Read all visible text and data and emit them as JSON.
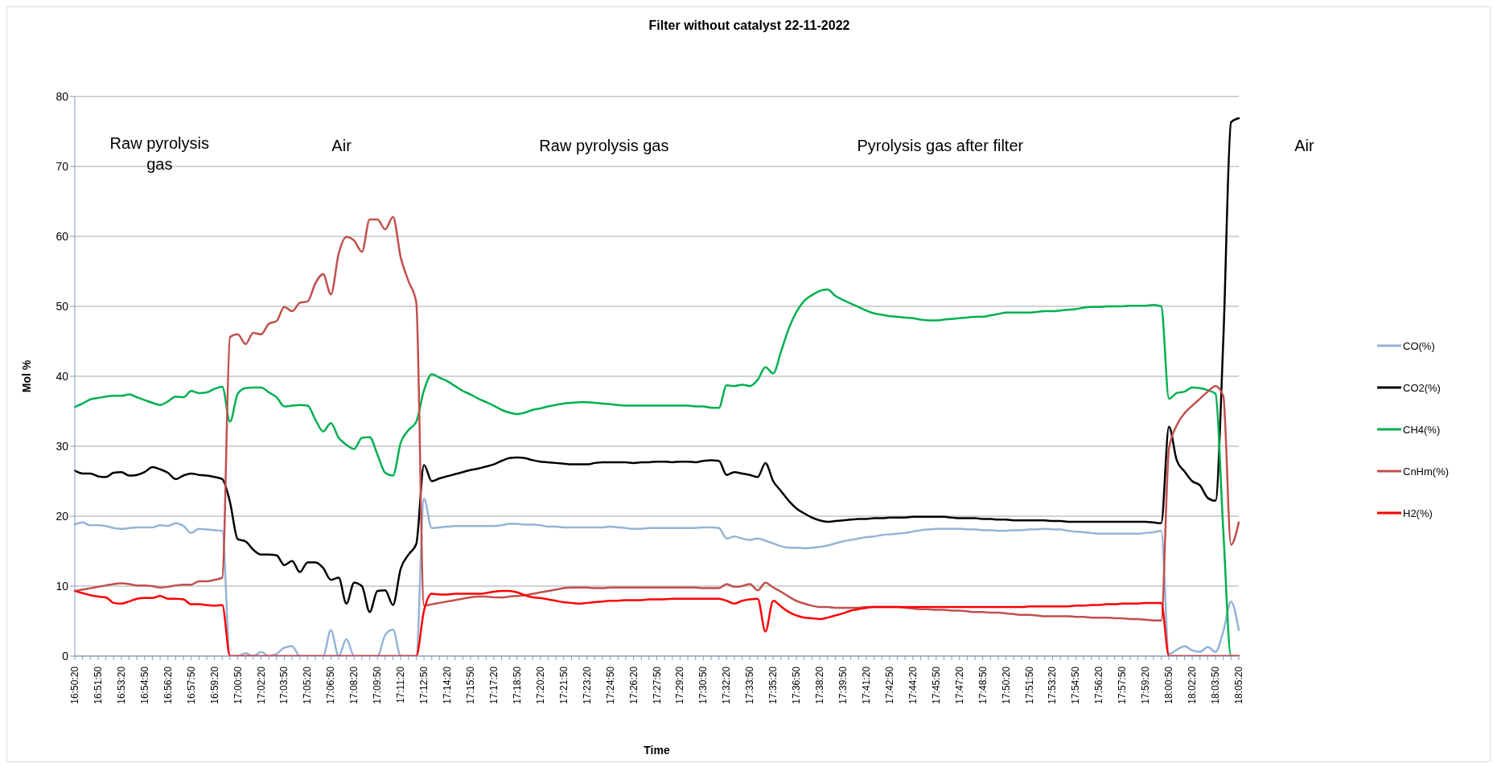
{
  "chart_data": {
    "type": "line",
    "title": "Filter without catalyst 22-11-2022",
    "xlabel": "Time",
    "ylabel": "Mol %",
    "legend": "right",
    "grid": "y",
    "ylim": [
      0,
      80
    ],
    "yticks": [
      0,
      10,
      20,
      30,
      40,
      50,
      60,
      70,
      80
    ],
    "annotations": [
      "Raw pyrolysis gas",
      "Air",
      "Raw pyrolysis gas",
      "Pyrolysis gas after filter",
      "Air"
    ],
    "categories": [
      "16:50:20",
      null,
      null,
      "16:51:50",
      null,
      null,
      "16:53:20",
      null,
      null,
      "16:54:50",
      null,
      null,
      "16:56:20",
      null,
      null,
      "16:57:50",
      null,
      null,
      "16:59:20",
      null,
      null,
      "17:00:50",
      null,
      null,
      "17:02:20",
      null,
      null,
      "17:03:50",
      null,
      null,
      "17:05:20",
      null,
      null,
      "17:06:50",
      null,
      null,
      "17:08:20",
      null,
      null,
      "17:09:50",
      null,
      null,
      "17:11:20",
      null,
      null,
      "17:12:50",
      null,
      null,
      "17:14:20",
      null,
      null,
      "17:15:50",
      null,
      null,
      "17:17:20",
      null,
      null,
      "17:18:50",
      null,
      null,
      "17:20:20",
      null,
      null,
      "17:21:50",
      null,
      null,
      "17:23:20",
      null,
      null,
      "17:24:50",
      null,
      null,
      "17:26:20",
      null,
      null,
      "17:27:50",
      null,
      null,
      "17:29:20",
      null,
      null,
      "17:30:50",
      null,
      null,
      "17:32:20",
      null,
      null,
      "17:33:50",
      null,
      null,
      "17:35:20",
      null,
      null,
      "17:36:50",
      null,
      null,
      "17:38:20",
      null,
      null,
      "17:39:50",
      null,
      null,
      "17:41:20",
      null,
      null,
      "17:42:50",
      null,
      null,
      "17:44:20",
      null,
      null,
      "17:45:50",
      null,
      null,
      "17:47:20",
      null,
      null,
      "17:48:50",
      null,
      null,
      "17:50:20",
      null,
      null,
      "17:51:50",
      null,
      null,
      "17:53:20",
      null,
      null,
      "17:54:50",
      null,
      null,
      "17:56:20",
      null,
      null,
      "17:57:50",
      null,
      null,
      "17:59:20",
      null,
      null,
      "18:00:50",
      null,
      null,
      "18:02:20",
      null,
      null,
      "18:03:50",
      null,
      null,
      "18:05:20"
    ],
    "series": [
      {
        "name": "CO(%)",
        "color": "#95b3d7",
        "values": [
          18.8,
          19.1,
          18.7,
          18.7,
          18.6,
          18.3,
          18.2,
          18.3,
          18.4,
          18.4,
          18.4,
          18.7,
          18.6,
          19.0,
          18.6,
          17.6,
          18.2,
          18.1,
          18.0,
          17.9,
          0,
          0,
          0.4,
          0,
          0.6,
          0,
          0.3,
          1.2,
          1.4,
          0,
          0,
          0,
          0,
          3.7,
          0,
          2.4,
          0,
          0,
          0,
          0,
          3.0,
          3.8,
          0,
          0,
          0,
          22.5,
          18.3,
          18.4,
          18.5,
          18.6,
          18.6,
          18.6,
          18.6,
          18.6,
          18.6,
          18.7,
          18.9,
          18.9,
          18.8,
          18.8,
          18.7,
          18.5,
          18.5,
          18.4,
          18.4,
          18.4,
          18.4,
          18.4,
          18.4,
          18.5,
          18.4,
          18.3,
          18.2,
          18.2,
          18.3,
          18.3,
          18.3,
          18.3,
          18.3,
          18.3,
          18.3,
          18.4,
          18.4,
          18.3,
          16.8,
          17.1,
          16.8,
          16.6,
          16.8,
          16.5,
          16.1,
          15.7,
          15.5,
          15.5,
          15.4,
          15.5,
          15.6,
          15.8,
          16.1,
          16.4,
          16.6,
          16.8,
          17.0,
          17.1,
          17.3,
          17.4,
          17.5,
          17.6,
          17.8,
          18.0,
          18.1,
          18.2,
          18.2,
          18.2,
          18.2,
          18.1,
          18.1,
          18.0,
          18.0,
          17.9,
          17.9,
          18.0,
          18.0,
          18.1,
          18.1,
          18.2,
          18.1,
          18.1,
          17.9,
          17.8,
          17.7,
          17.6,
          17.5,
          17.5,
          17.5,
          17.5,
          17.5,
          17.5,
          17.6,
          17.7,
          17.9,
          0.3,
          0.9,
          1.4,
          0.8,
          0.6,
          1.3,
          0.6,
          3.5,
          7.8,
          3.7
        ]
      },
      {
        "name": "CO2(%)",
        "color": "#000000",
        "values": [
          26.5,
          26.1,
          26.1,
          25.7,
          25.6,
          26.2,
          26.3,
          25.8,
          25.9,
          26.3,
          27.0,
          26.7,
          26.2,
          25.3,
          25.8,
          26.1,
          25.9,
          25.8,
          25.6,
          25.3,
          22.0,
          16.7,
          16.4,
          15.2,
          14.5,
          14.5,
          14.4,
          13.0,
          13.6,
          12.0,
          13.4,
          13.4,
          12.6,
          10.9,
          11.2,
          7.5,
          10.5,
          10.0,
          6.3,
          9.3,
          9.4,
          7.3,
          12.5,
          14.5,
          16.0,
          27.3,
          25.0,
          25.4,
          25.7,
          26.0,
          26.3,
          26.6,
          26.8,
          27.1,
          27.4,
          27.9,
          28.3,
          28.4,
          28.3,
          28.0,
          27.8,
          27.7,
          27.6,
          27.5,
          27.4,
          27.4,
          27.4,
          27.6,
          27.7,
          27.7,
          27.7,
          27.7,
          27.6,
          27.7,
          27.7,
          27.8,
          27.8,
          27.7,
          27.8,
          27.8,
          27.7,
          27.9,
          28.0,
          27.9,
          25.9,
          26.3,
          26.1,
          25.9,
          25.6,
          27.6,
          25.0,
          23.6,
          22.2,
          21.1,
          20.4,
          19.8,
          19.4,
          19.2,
          19.3,
          19.4,
          19.5,
          19.6,
          19.6,
          19.7,
          19.7,
          19.8,
          19.8,
          19.8,
          19.9,
          19.9,
          19.9,
          19.9,
          19.9,
          19.8,
          19.7,
          19.7,
          19.7,
          19.6,
          19.6,
          19.5,
          19.5,
          19.4,
          19.4,
          19.4,
          19.4,
          19.4,
          19.3,
          19.3,
          19.2,
          19.2,
          19.2,
          19.2,
          19.2,
          19.2,
          19.2,
          19.2,
          19.2,
          19.2,
          19.2,
          19.1,
          19.0,
          32.8,
          28.0,
          26.4,
          25.0,
          24.4,
          22.6,
          22.2,
          45.0,
          76.3,
          76.9
        ]
      },
      {
        "name": "CH4(%)",
        "color": "#00b050",
        "values": [
          35.6,
          36.1,
          36.7,
          36.9,
          37.1,
          37.2,
          37.2,
          37.4,
          37.0,
          36.6,
          36.2,
          35.9,
          36.4,
          37.1,
          37.0,
          37.9,
          37.6,
          37.7,
          38.2,
          38.5,
          33.5,
          37.5,
          38.3,
          38.4,
          38.4,
          37.7,
          37.0,
          35.7,
          35.8,
          35.9,
          35.8,
          33.8,
          32.1,
          33.3,
          31.2,
          30.2,
          29.6,
          31.2,
          31.3,
          28.8,
          26.2,
          25.8,
          30.5,
          32.3,
          33.5,
          38.0,
          40.3,
          39.8,
          39.3,
          38.6,
          37.9,
          37.4,
          36.8,
          36.3,
          35.8,
          35.2,
          34.8,
          34.6,
          34.8,
          35.2,
          35.4,
          35.7,
          35.9,
          36.1,
          36.2,
          36.3,
          36.3,
          36.2,
          36.1,
          36.0,
          35.9,
          35.8,
          35.8,
          35.8,
          35.8,
          35.8,
          35.8,
          35.8,
          35.8,
          35.8,
          35.7,
          35.7,
          35.5,
          35.5,
          38.7,
          38.6,
          38.8,
          38.6,
          39.5,
          41.3,
          40.4,
          43.5,
          46.8,
          49.2,
          50.8,
          51.6,
          52.2,
          52.4,
          51.5,
          50.9,
          50.4,
          49.9,
          49.4,
          49.0,
          48.8,
          48.6,
          48.5,
          48.4,
          48.3,
          48.1,
          48.0,
          48.0,
          48.1,
          48.2,
          48.3,
          48.4,
          48.5,
          48.5,
          48.7,
          48.9,
          49.1,
          49.1,
          49.1,
          49.1,
          49.2,
          49.3,
          49.3,
          49.4,
          49.5,
          49.6,
          49.8,
          49.9,
          49.9,
          50.0,
          50.0,
          50.0,
          50.1,
          50.1,
          50.1,
          50.2,
          50.0,
          36.8,
          37.6,
          37.8,
          38.4,
          38.3,
          38.0,
          37.5,
          18.0,
          0,
          0
        ]
      },
      {
        "name": "CnHm(%)",
        "color": "#c0504d",
        "values": [
          9.3,
          9.5,
          9.7,
          9.9,
          10.1,
          10.3,
          10.4,
          10.3,
          10.1,
          10.1,
          10.0,
          9.8,
          9.9,
          10.1,
          10.2,
          10.2,
          10.7,
          10.7,
          10.9,
          11.2,
          45.6,
          46.0,
          44.6,
          46.2,
          46.0,
          47.5,
          47.9,
          49.9,
          49.3,
          50.5,
          50.7,
          53.3,
          54.6,
          51.7,
          57.5,
          59.9,
          59.4,
          57.8,
          62.4,
          62.4,
          61.0,
          62.8,
          57.0,
          53.6,
          50.6,
          7.2,
          7.4,
          7.6,
          7.8,
          8.0,
          8.2,
          8.4,
          8.5,
          8.5,
          8.4,
          8.4,
          8.5,
          8.6,
          8.7,
          8.9,
          9.1,
          9.3,
          9.5,
          9.7,
          9.8,
          9.8,
          9.8,
          9.7,
          9.7,
          9.8,
          9.8,
          9.8,
          9.8,
          9.8,
          9.8,
          9.8,
          9.8,
          9.8,
          9.8,
          9.8,
          9.8,
          9.7,
          9.7,
          9.7,
          10.3,
          9.9,
          10.0,
          10.3,
          9.4,
          10.5,
          9.8,
          9.2,
          8.5,
          7.9,
          7.5,
          7.2,
          7.0,
          7.0,
          6.9,
          6.9,
          6.9,
          6.9,
          7.0,
          7.0,
          7.0,
          7.0,
          7.0,
          6.9,
          6.8,
          6.7,
          6.7,
          6.6,
          6.6,
          6.5,
          6.5,
          6.4,
          6.3,
          6.3,
          6.2,
          6.2,
          6.1,
          6.0,
          5.9,
          5.9,
          5.8,
          5.7,
          5.7,
          5.7,
          5.7,
          5.6,
          5.6,
          5.5,
          5.5,
          5.5,
          5.4,
          5.4,
          5.3,
          5.3,
          5.2,
          5.1,
          5.1,
          29.6,
          33.0,
          34.7,
          35.8,
          36.8,
          37.8,
          38.6,
          37.2,
          15.9,
          19.1
        ]
      },
      {
        "name": "H2(%)",
        "color": "#ff0000",
        "values": [
          9.3,
          9.0,
          8.7,
          8.5,
          8.4,
          7.6,
          7.5,
          7.8,
          8.2,
          8.3,
          8.3,
          8.6,
          8.2,
          8.2,
          8.1,
          7.4,
          7.4,
          7.3,
          7.2,
          7.3,
          0,
          0,
          0,
          0,
          0,
          0,
          0,
          0,
          0,
          0,
          0,
          0,
          0,
          0,
          0,
          0,
          0,
          0,
          0,
          0,
          0,
          0,
          0,
          0,
          0,
          6.5,
          8.9,
          8.8,
          8.8,
          8.9,
          8.9,
          8.9,
          8.9,
          9.0,
          9.2,
          9.3,
          9.3,
          9.1,
          8.7,
          8.4,
          8.3,
          8.1,
          7.9,
          7.7,
          7.6,
          7.5,
          7.6,
          7.7,
          7.8,
          7.9,
          7.9,
          8.0,
          8.0,
          8.0,
          8.1,
          8.1,
          8.1,
          8.2,
          8.2,
          8.2,
          8.2,
          8.2,
          8.2,
          8.2,
          7.9,
          7.5,
          7.9,
          8.1,
          8.2,
          3.5,
          7.9,
          7.1,
          6.3,
          5.8,
          5.5,
          5.4,
          5.3,
          5.5,
          5.8,
          6.1,
          6.5,
          6.7,
          6.9,
          7.0,
          7.0,
          7.0,
          7.0,
          7.0,
          7.0,
          7.0,
          7.0,
          7.0,
          7.0,
          7.0,
          7.0,
          7.0,
          7.0,
          7.0,
          7.0,
          7.0,
          7.0,
          7.0,
          7.0,
          7.1,
          7.1,
          7.1,
          7.1,
          7.1,
          7.1,
          7.2,
          7.2,
          7.3,
          7.3,
          7.4,
          7.4,
          7.5,
          7.5,
          7.5,
          7.6,
          7.6,
          7.6,
          0,
          0,
          0,
          0,
          0,
          0,
          0,
          0,
          0,
          0
        ]
      }
    ]
  }
}
